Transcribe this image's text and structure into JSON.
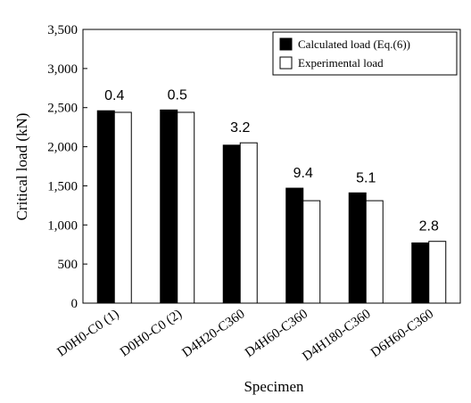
{
  "chart_data": {
    "type": "bar",
    "title": "",
    "xlabel": "Specimen",
    "ylabel": "Critical load (kN)",
    "ylim": [
      0,
      3500
    ],
    "yticks": [
      0,
      500,
      1000,
      1500,
      2000,
      2500,
      3000,
      3500
    ],
    "ytick_labels": [
      "0",
      "500",
      "1,000",
      "1,500",
      "2,000",
      "2,500",
      "3,000",
      "3,500"
    ],
    "grid": false,
    "legend_position": "top-right",
    "categories": [
      "D0H0-C0 (1)",
      "D0H0-C0 (2)",
      "D4H20-C360",
      "D4H60-C360",
      "D4H180-C360",
      "D6H60-C360"
    ],
    "series": [
      {
        "name": "Calculated load (Eq.(6))",
        "color": "#000000",
        "values": [
          2460,
          2470,
          2020,
          1470,
          1410,
          770
        ]
      },
      {
        "name": "Experimental load",
        "color": "#ffffff",
        "values": [
          2440,
          2440,
          2050,
          1310,
          1310,
          790
        ]
      }
    ],
    "annotations": [
      "0.4",
      "0.5",
      "3.2",
      "9.4",
      "5.1",
      "2.8"
    ]
  }
}
